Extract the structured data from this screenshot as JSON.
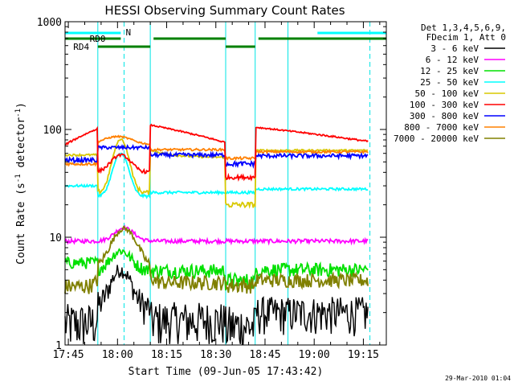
{
  "chart_data": {
    "type": "line",
    "title": "HESSI Observing Summary Count Rates",
    "xlabel": "Start Time (09-Jun-05 17:43:42)",
    "ylabel_main": "Count Rate (s",
    "ylabel_sup1": "-1",
    "ylabel_mid": " detector",
    "ylabel_sup2": "-1",
    "ylabel_end": ")",
    "y_scale": "log",
    "ylim": [
      1,
      1000
    ],
    "xlim_minutes": [
      -1,
      97
    ],
    "x_ticks": [
      {
        "label": "17:45",
        "minute": 0
      },
      {
        "label": "18:00",
        "minute": 15
      },
      {
        "label": "18:15",
        "minute": 30
      },
      {
        "label": "18:30",
        "minute": 45
      },
      {
        "label": "18:45",
        "minute": 60
      },
      {
        "label": "19:00",
        "minute": 75
      },
      {
        "label": "19:15",
        "minute": 90
      }
    ],
    "y_ticks": [
      {
        "label": "1",
        "value": 1
      },
      {
        "label": "10",
        "value": 10
      },
      {
        "label": "100",
        "value": 100
      },
      {
        "label": "1000",
        "value": 1000
      }
    ],
    "legend_title": [
      "Det 1,3,4,5,6,9,",
      "FDecim 1, Att 0"
    ],
    "legend_position": "right",
    "series": [
      {
        "name": "3 - 6 keV",
        "color": "#000000"
      },
      {
        "name": "6 - 12 keV",
        "color": "#ff00ff"
      },
      {
        "name": "12 - 25 keV",
        "color": "#00e000"
      },
      {
        "name": "25 - 50 keV",
        "color": "#00ffff"
      },
      {
        "name": "50 - 100 keV",
        "color": "#d8c800"
      },
      {
        "name": "100 - 300 keV",
        "color": "#ff0000"
      },
      {
        "name": "300 - 800 keV",
        "color": "#0000ff"
      },
      {
        "name": "800 - 7000 keV",
        "color": "#ff8000"
      },
      {
        "name": "7000 - 20000 keV",
        "color": "#808000"
      }
    ],
    "segments": [
      {
        "name": "N",
        "start": -1,
        "end": 16,
        "color": "#00ffff"
      },
      {
        "name": "RD0",
        "start": -1,
        "end": 16,
        "color": "#008000"
      },
      {
        "name": "RD4",
        "start": 9,
        "end": 25,
        "color": "#008000"
      }
    ],
    "timestamp": "29-Mar-2010 01:04"
  }
}
